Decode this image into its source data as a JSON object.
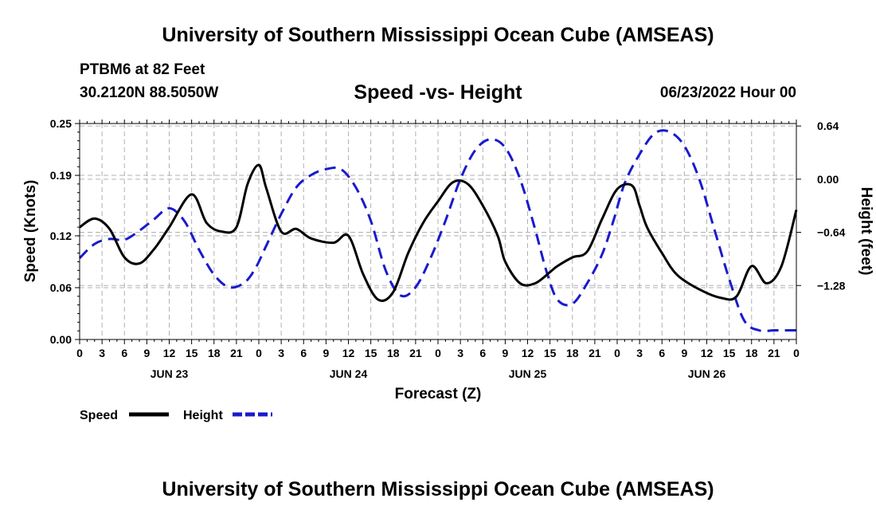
{
  "header": {
    "title": "University of Southern Mississippi Ocean Cube (AMSEAS)",
    "station": "PTBM6 at 82 Feet",
    "coords": "30.2120N  88.5050W",
    "chart_title": "Speed -vs- Height",
    "datetime": "06/23/2022 Hour 00"
  },
  "footer": {
    "title": "University of Southern Mississippi Ocean Cube (AMSEAS)"
  },
  "colors": {
    "speed": "#000000",
    "height": "#1a1acc",
    "grid": "#b0b0b0"
  },
  "chart_data": {
    "type": "line",
    "title": "Speed -vs- Height",
    "xlabel": "Forecast (Z)",
    "ylabel": "Speed (Knots)",
    "y2label": "Height (feet)",
    "xlim": [
      0,
      96
    ],
    "ylim": [
      0,
      0.25
    ],
    "y2lim": [
      -1.93,
      0.67
    ],
    "x_ticks": [
      0,
      3,
      6,
      9,
      12,
      15,
      18,
      21,
      24,
      27,
      30,
      33,
      36,
      39,
      42,
      45,
      48,
      51,
      54,
      57,
      60,
      63,
      66,
      69,
      72,
      75,
      78,
      81,
      84,
      87,
      90,
      93,
      96
    ],
    "x_tick_labels": [
      "0",
      "3",
      "6",
      "9",
      "12",
      "15",
      "18",
      "21",
      "0",
      "3",
      "6",
      "9",
      "12",
      "15",
      "18",
      "21",
      "0",
      "3",
      "6",
      "9",
      "12",
      "15",
      "18",
      "21",
      "0",
      "3",
      "6",
      "9",
      "12",
      "15",
      "18",
      "21",
      "0"
    ],
    "date_labels": [
      {
        "x": 12,
        "label": "JUN 23"
      },
      {
        "x": 36,
        "label": "JUN 24"
      },
      {
        "x": 60,
        "label": "JUN 25"
      },
      {
        "x": 84,
        "label": "JUN 26"
      }
    ],
    "y_ticks": [
      0.0,
      0.06,
      0.12,
      0.19,
      0.25
    ],
    "y_tick_labels": [
      "0.00",
      "0.06",
      "0.12",
      "0.19",
      "0.25"
    ],
    "y2_ticks": [
      0.64,
      0.0,
      -0.64,
      -1.28
    ],
    "y2_tick_labels": [
      "0.64",
      "0.00",
      "-0.64",
      "-1.28"
    ],
    "legend": [
      {
        "name": "Speed",
        "style": "solid"
      },
      {
        "name": "Height",
        "style": "dashed"
      }
    ],
    "series": [
      {
        "name": "Speed",
        "axis": "left",
        "x": [
          0,
          2,
          4,
          6,
          8,
          10,
          12,
          15,
          17,
          19,
          21,
          22.5,
          24,
          25,
          27,
          29,
          31,
          34,
          36,
          38,
          40,
          42,
          44,
          46,
          48,
          50,
          52,
          54,
          56,
          57,
          59,
          61,
          63,
          64,
          66,
          68,
          70,
          72,
          74,
          75,
          76,
          78,
          80,
          83,
          86,
          88,
          90,
          92,
          94,
          96
        ],
        "y": [
          0.13,
          0.14,
          0.128,
          0.095,
          0.088,
          0.105,
          0.13,
          0.168,
          0.135,
          0.125,
          0.13,
          0.18,
          0.202,
          0.175,
          0.125,
          0.128,
          0.117,
          0.112,
          0.12,
          0.075,
          0.046,
          0.055,
          0.1,
          0.135,
          0.16,
          0.182,
          0.18,
          0.155,
          0.12,
          0.09,
          0.065,
          0.065,
          0.078,
          0.085,
          0.095,
          0.102,
          0.14,
          0.174,
          0.178,
          0.155,
          0.13,
          0.1,
          0.075,
          0.058,
          0.048,
          0.05,
          0.085,
          0.065,
          0.085,
          0.15
        ]
      },
      {
        "name": "Height",
        "axis": "right",
        "x": [
          0,
          2,
          4,
          6,
          8,
          10,
          12,
          14,
          16,
          18,
          20,
          22,
          23.5,
          25,
          27,
          29,
          31,
          33,
          35,
          37,
          39,
          41,
          43,
          45,
          47,
          49,
          51,
          53,
          55,
          57,
          59,
          61,
          62.5,
          64,
          66,
          68,
          70,
          71.5,
          73,
          75,
          77,
          79,
          81,
          83,
          85,
          87,
          89,
          91,
          93,
          94,
          95,
          96
        ],
        "y": [
          -0.95,
          -0.78,
          -0.72,
          -0.73,
          -0.62,
          -0.48,
          -0.35,
          -0.5,
          -0.85,
          -1.15,
          -1.3,
          -1.25,
          -1.08,
          -0.8,
          -0.42,
          -0.1,
          0.05,
          0.12,
          0.12,
          -0.1,
          -0.5,
          -1.1,
          -1.4,
          -1.3,
          -0.95,
          -0.5,
          0.0,
          0.35,
          0.48,
          0.38,
          0.0,
          -0.6,
          -1.1,
          -1.45,
          -1.5,
          -1.25,
          -0.9,
          -0.5,
          -0.05,
          0.3,
          0.55,
          0.57,
          0.4,
          0.0,
          -0.6,
          -1.2,
          -1.7,
          -1.82,
          -1.82,
          -1.82,
          -1.82,
          -1.82
        ]
      }
    ]
  }
}
